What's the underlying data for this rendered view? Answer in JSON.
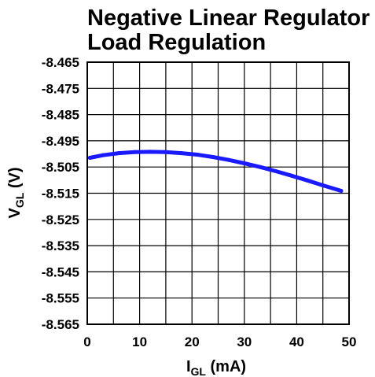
{
  "chart_data": {
    "type": "line",
    "title_lines": [
      "Negative Linear Regulator",
      "Load Regulation"
    ],
    "xlabel": {
      "main": "I",
      "sub": "GL",
      "unit": " (mA)"
    },
    "ylabel": {
      "main": "V",
      "sub": "GL",
      "unit": " (V)"
    },
    "xlim": [
      0,
      50
    ],
    "ylim": [
      -8.565,
      -8.465
    ],
    "x_ticks": [
      0,
      10,
      20,
      30,
      40,
      50
    ],
    "x_tick_labels": [
      "0",
      "10",
      "20",
      "30",
      "40",
      "50"
    ],
    "y_ticks": [
      -8.465,
      -8.475,
      -8.485,
      -8.495,
      -8.505,
      -8.515,
      -8.525,
      -8.535,
      -8.545,
      -8.555,
      -8.565
    ],
    "y_tick_labels": [
      "-8.465",
      "-8.475",
      "-8.485",
      "-8.495",
      "-8.505",
      "-8.515",
      "-8.525",
      "-8.535",
      "-8.545",
      "-8.555",
      "-8.565"
    ],
    "x_grid_lines": [
      5,
      10,
      15,
      20,
      25,
      30,
      35,
      40,
      45
    ],
    "grid": true,
    "series": [
      {
        "color": "#1a1aff",
        "x": [
          0.5,
          3,
          6,
          9,
          12,
          15,
          18,
          21,
          24,
          27,
          30,
          33,
          36,
          39,
          42,
          45,
          48.5
        ],
        "y": [
          -8.5015,
          -8.5005,
          -8.4997,
          -8.4993,
          -8.4992,
          -8.4993,
          -8.4997,
          -8.5003,
          -8.5012,
          -8.5023,
          -8.5036,
          -8.505,
          -8.5066,
          -8.5083,
          -8.5101,
          -8.512,
          -8.5141
        ]
      }
    ]
  }
}
